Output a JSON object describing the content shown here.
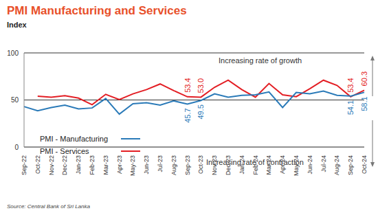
{
  "chart_data": {
    "type": "line",
    "title": "PMI Manufacturing and Services",
    "subtitle": "Index",
    "categories": [
      "Sep-22",
      "Oct-22",
      "Nov-22",
      "Dec-22",
      "Jan-23",
      "Feb-23",
      "Mar-23",
      "Apr-23",
      "May-23",
      "Jun-23",
      "Jul-23",
      "Aug-23",
      "Sep-23",
      "Oct-23",
      "Nov-23",
      "Dec-23",
      "Jan-24",
      "Feb-24",
      "Mar-24",
      "Apr-24",
      "May-24",
      "Jun-24",
      "Jul-24",
      "Aug-24",
      "Sep-24",
      "Oct-24"
    ],
    "series": [
      {
        "name": "PMI - Services",
        "color": "#e31e24",
        "values": [
          null,
          54,
          53,
          54.5,
          52,
          45,
          56,
          50.5,
          56.5,
          61,
          67,
          60,
          53.4,
          53.0,
          63.5,
          71,
          61,
          53,
          67.5,
          55.5,
          53.5,
          62,
          71,
          65.5,
          53.4,
          60.3
        ],
        "value_labels": [
          null,
          null,
          null,
          null,
          null,
          null,
          null,
          null,
          null,
          null,
          null,
          null,
          "53.4",
          "53.0",
          null,
          null,
          null,
          null,
          null,
          null,
          null,
          null,
          null,
          null,
          "53.4",
          "60.3"
        ]
      },
      {
        "name": "PMI - Manufacturing",
        "color": "#2a7ab8",
        "values": [
          43,
          38.5,
          42,
          44.5,
          40.5,
          41.5,
          51.5,
          35,
          46,
          47,
          44.5,
          49,
          45.7,
          49.5,
          56.5,
          53,
          55,
          55.5,
          58.5,
          42,
          58,
          56.5,
          59.5,
          55,
          54.1,
          58.1
        ],
        "value_labels": [
          null,
          null,
          null,
          null,
          null,
          null,
          null,
          null,
          null,
          null,
          null,
          null,
          "45.7",
          "49.5",
          null,
          null,
          null,
          null,
          null,
          null,
          null,
          null,
          null,
          null,
          "54.1",
          "58.1"
        ]
      }
    ],
    "ylim": [
      0,
      100
    ],
    "yticks": [
      0,
      50,
      100
    ],
    "grid": true,
    "legend": "lower left",
    "data_labels": true,
    "annotations": [
      "Increasing rate of growth",
      "Increasing rate of contraction"
    ],
    "source": "Source: Central Bank of Sri Lanka"
  }
}
